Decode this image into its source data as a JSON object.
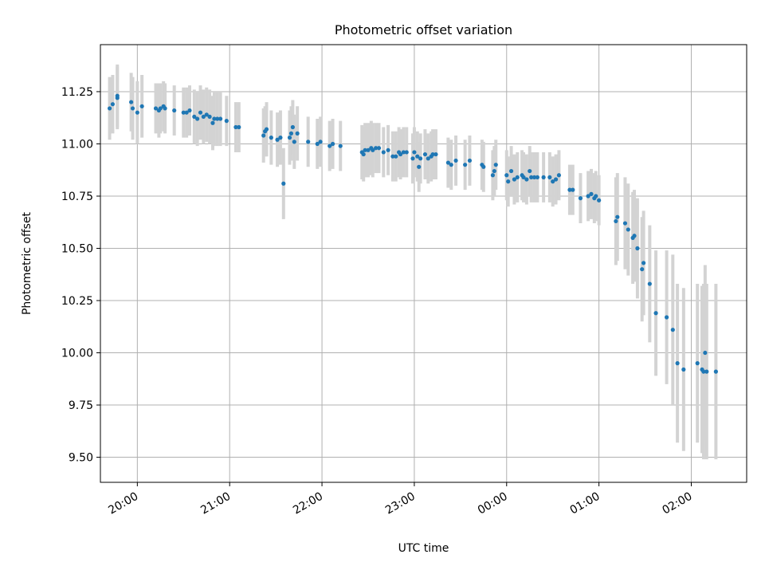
{
  "chart_data": {
    "type": "scatter",
    "title": "Photometric offset variation",
    "xlabel": "UTC time",
    "ylabel": "Photometric offset",
    "x_scale": "time",
    "xlim": [
      "19:36",
      "02:36"
    ],
    "ylim": [
      9.38,
      11.475
    ],
    "x_ticks": [
      "20:00",
      "21:00",
      "22:00",
      "23:00",
      "00:00",
      "01:00",
      "02:00"
    ],
    "y_ticks": [
      "9.50",
      "9.75",
      "10.00",
      "10.25",
      "10.50",
      "10.75",
      "11.00",
      "11.25"
    ],
    "grid": true,
    "marker_color": "#1f77b4",
    "errorbar_color": "#d3d3d3",
    "points": [
      {
        "t": "19:42",
        "y": 11.17,
        "err": 0.15
      },
      {
        "t": "19:44",
        "y": 11.19,
        "err": 0.14
      },
      {
        "t": "19:47",
        "y": 11.23,
        "err": 0.15
      },
      {
        "t": "19:47",
        "y": 11.22,
        "err": 0.15
      },
      {
        "t": "19:56",
        "y": 11.2,
        "err": 0.14
      },
      {
        "t": "19:57",
        "y": 11.17,
        "err": 0.15
      },
      {
        "t": "20:00",
        "y": 11.15,
        "err": 0.15
      },
      {
        "t": "20:03",
        "y": 11.18,
        "err": 0.15
      },
      {
        "t": "20:12",
        "y": 11.17,
        "err": 0.12
      },
      {
        "t": "20:14",
        "y": 11.16,
        "err": 0.13
      },
      {
        "t": "20:15",
        "y": 11.17,
        "err": 0.12
      },
      {
        "t": "20:17",
        "y": 11.18,
        "err": 0.12
      },
      {
        "t": "20:18",
        "y": 11.17,
        "err": 0.12
      },
      {
        "t": "20:24",
        "y": 11.16,
        "err": 0.12
      },
      {
        "t": "20:30",
        "y": 11.15,
        "err": 0.12
      },
      {
        "t": "20:32",
        "y": 11.15,
        "err": 0.12
      },
      {
        "t": "20:34",
        "y": 11.16,
        "err": 0.12
      },
      {
        "t": "20:37",
        "y": 11.13,
        "err": 0.13
      },
      {
        "t": "20:39",
        "y": 11.12,
        "err": 0.13
      },
      {
        "t": "20:41",
        "y": 11.15,
        "err": 0.13
      },
      {
        "t": "20:43",
        "y": 11.13,
        "err": 0.13
      },
      {
        "t": "20:45",
        "y": 11.14,
        "err": 0.13
      },
      {
        "t": "20:47",
        "y": 11.13,
        "err": 0.13
      },
      {
        "t": "20:49",
        "y": 11.1,
        "err": 0.13
      },
      {
        "t": "20:50",
        "y": 11.12,
        "err": 0.13
      },
      {
        "t": "20:52",
        "y": 11.12,
        "err": 0.13
      },
      {
        "t": "20:54",
        "y": 11.12,
        "err": 0.13
      },
      {
        "t": "20:58",
        "y": 11.11,
        "err": 0.12
      },
      {
        "t": "21:04",
        "y": 11.08,
        "err": 0.12
      },
      {
        "t": "21:06",
        "y": 11.08,
        "err": 0.12
      },
      {
        "t": "21:22",
        "y": 11.04,
        "err": 0.13
      },
      {
        "t": "21:23",
        "y": 11.06,
        "err": 0.12
      },
      {
        "t": "21:24",
        "y": 11.07,
        "err": 0.13
      },
      {
        "t": "21:27",
        "y": 11.03,
        "err": 0.13
      },
      {
        "t": "21:31",
        "y": 11.02,
        "err": 0.13
      },
      {
        "t": "21:33",
        "y": 11.03,
        "err": 0.13
      },
      {
        "t": "21:35",
        "y": 10.81,
        "err": 0.17
      },
      {
        "t": "21:39",
        "y": 11.03,
        "err": 0.13
      },
      {
        "t": "21:40",
        "y": 11.05,
        "err": 0.13
      },
      {
        "t": "21:41",
        "y": 11.08,
        "err": 0.13
      },
      {
        "t": "21:42",
        "y": 11.01,
        "err": 0.13
      },
      {
        "t": "21:44",
        "y": 11.05,
        "err": 0.13
      },
      {
        "t": "21:51",
        "y": 11.01,
        "err": 0.12
      },
      {
        "t": "21:57",
        "y": 11.0,
        "err": 0.12
      },
      {
        "t": "21:59",
        "y": 11.01,
        "err": 0.12
      },
      {
        "t": "22:05",
        "y": 10.99,
        "err": 0.12
      },
      {
        "t": "22:07",
        "y": 11.0,
        "err": 0.12
      },
      {
        "t": "22:12",
        "y": 10.99,
        "err": 0.12
      },
      {
        "t": "22:26",
        "y": 10.96,
        "err": 0.13
      },
      {
        "t": "22:27",
        "y": 10.95,
        "err": 0.13
      },
      {
        "t": "22:28",
        "y": 10.97,
        "err": 0.13
      },
      {
        "t": "22:30",
        "y": 10.97,
        "err": 0.13
      },
      {
        "t": "22:32",
        "y": 10.98,
        "err": 0.13
      },
      {
        "t": "22:33",
        "y": 10.97,
        "err": 0.13
      },
      {
        "t": "22:35",
        "y": 10.98,
        "err": 0.12
      },
      {
        "t": "22:37",
        "y": 10.98,
        "err": 0.12
      },
      {
        "t": "22:40",
        "y": 10.96,
        "err": 0.12
      },
      {
        "t": "22:43",
        "y": 10.97,
        "err": 0.12
      },
      {
        "t": "22:46",
        "y": 10.94,
        "err": 0.12
      },
      {
        "t": "22:48",
        "y": 10.94,
        "err": 0.12
      },
      {
        "t": "22:50",
        "y": 10.96,
        "err": 0.12
      },
      {
        "t": "22:51",
        "y": 10.95,
        "err": 0.12
      },
      {
        "t": "22:53",
        "y": 10.96,
        "err": 0.12
      },
      {
        "t": "22:55",
        "y": 10.96,
        "err": 0.12
      },
      {
        "t": "22:59",
        "y": 10.93,
        "err": 0.12
      },
      {
        "t": "23:00",
        "y": 10.96,
        "err": 0.12
      },
      {
        "t": "23:02",
        "y": 10.94,
        "err": 0.12
      },
      {
        "t": "23:03",
        "y": 10.89,
        "err": 0.12
      },
      {
        "t": "23:04",
        "y": 10.93,
        "err": 0.12
      },
      {
        "t": "23:07",
        "y": 10.95,
        "err": 0.12
      },
      {
        "t": "23:09",
        "y": 10.93,
        "err": 0.12
      },
      {
        "t": "23:11",
        "y": 10.94,
        "err": 0.12
      },
      {
        "t": "23:12",
        "y": 10.95,
        "err": 0.12
      },
      {
        "t": "23:14",
        "y": 10.95,
        "err": 0.12
      },
      {
        "t": "23:22",
        "y": 10.91,
        "err": 0.12
      },
      {
        "t": "23:24",
        "y": 10.9,
        "err": 0.12
      },
      {
        "t": "23:27",
        "y": 10.92,
        "err": 0.12
      },
      {
        "t": "23:33",
        "y": 10.9,
        "err": 0.12
      },
      {
        "t": "23:36",
        "y": 10.92,
        "err": 0.12
      },
      {
        "t": "23:44",
        "y": 10.9,
        "err": 0.12
      },
      {
        "t": "23:45",
        "y": 10.89,
        "err": 0.12
      },
      {
        "t": "23:51",
        "y": 10.85,
        "err": 0.12
      },
      {
        "t": "23:52",
        "y": 10.87,
        "err": 0.12
      },
      {
        "t": "23:53",
        "y": 10.9,
        "err": 0.12
      },
      {
        "t": "00:00",
        "y": 10.85,
        "err": 0.12
      },
      {
        "t": "00:01",
        "y": 10.82,
        "err": 0.12
      },
      {
        "t": "00:03",
        "y": 10.87,
        "err": 0.12
      },
      {
        "t": "00:05",
        "y": 10.83,
        "err": 0.12
      },
      {
        "t": "00:07",
        "y": 10.84,
        "err": 0.12
      },
      {
        "t": "00:10",
        "y": 10.85,
        "err": 0.12
      },
      {
        "t": "00:11",
        "y": 10.84,
        "err": 0.12
      },
      {
        "t": "00:13",
        "y": 10.83,
        "err": 0.12
      },
      {
        "t": "00:15",
        "y": 10.87,
        "err": 0.12
      },
      {
        "t": "00:16",
        "y": 10.84,
        "err": 0.12
      },
      {
        "t": "00:18",
        "y": 10.84,
        "err": 0.12
      },
      {
        "t": "00:20",
        "y": 10.84,
        "err": 0.12
      },
      {
        "t": "00:24",
        "y": 10.84,
        "err": 0.12
      },
      {
        "t": "00:28",
        "y": 10.84,
        "err": 0.12
      },
      {
        "t": "00:30",
        "y": 10.82,
        "err": 0.12
      },
      {
        "t": "00:32",
        "y": 10.83,
        "err": 0.12
      },
      {
        "t": "00:34",
        "y": 10.85,
        "err": 0.12
      },
      {
        "t": "00:41",
        "y": 10.78,
        "err": 0.12
      },
      {
        "t": "00:43",
        "y": 10.78,
        "err": 0.12
      },
      {
        "t": "00:48",
        "y": 10.74,
        "err": 0.12
      },
      {
        "t": "00:53",
        "y": 10.75,
        "err": 0.12
      },
      {
        "t": "00:55",
        "y": 10.76,
        "err": 0.12
      },
      {
        "t": "00:57",
        "y": 10.74,
        "err": 0.12
      },
      {
        "t": "00:58",
        "y": 10.75,
        "err": 0.12
      },
      {
        "t": "01:00",
        "y": 10.73,
        "err": 0.12
      },
      {
        "t": "01:11",
        "y": 10.63,
        "err": 0.21
      },
      {
        "t": "01:12",
        "y": 10.65,
        "err": 0.21
      },
      {
        "t": "01:17",
        "y": 10.62,
        "err": 0.22
      },
      {
        "t": "01:19",
        "y": 10.59,
        "err": 0.22
      },
      {
        "t": "01:22",
        "y": 10.55,
        "err": 0.22
      },
      {
        "t": "01:23",
        "y": 10.56,
        "err": 0.22
      },
      {
        "t": "01:25",
        "y": 10.5,
        "err": 0.24
      },
      {
        "t": "01:28",
        "y": 10.4,
        "err": 0.25
      },
      {
        "t": "01:29",
        "y": 10.43,
        "err": 0.25
      },
      {
        "t": "01:33",
        "y": 10.33,
        "err": 0.28
      },
      {
        "t": "01:37",
        "y": 10.19,
        "err": 0.3
      },
      {
        "t": "01:44",
        "y": 10.17,
        "err": 0.32
      },
      {
        "t": "01:48",
        "y": 10.11,
        "err": 0.36
      },
      {
        "t": "01:51",
        "y": 9.95,
        "err": 0.38
      },
      {
        "t": "01:55",
        "y": 9.92,
        "err": 0.39
      },
      {
        "t": "02:04",
        "y": 9.95,
        "err": 0.38
      },
      {
        "t": "02:07",
        "y": 9.92,
        "err": 0.4
      },
      {
        "t": "02:08",
        "y": 9.91,
        "err": 0.42
      },
      {
        "t": "02:09",
        "y": 10.0,
        "err": 0.42
      },
      {
        "t": "02:10",
        "y": 9.91,
        "err": 0.42
      },
      {
        "t": "02:16",
        "y": 9.91,
        "err": 0.42
      }
    ]
  }
}
